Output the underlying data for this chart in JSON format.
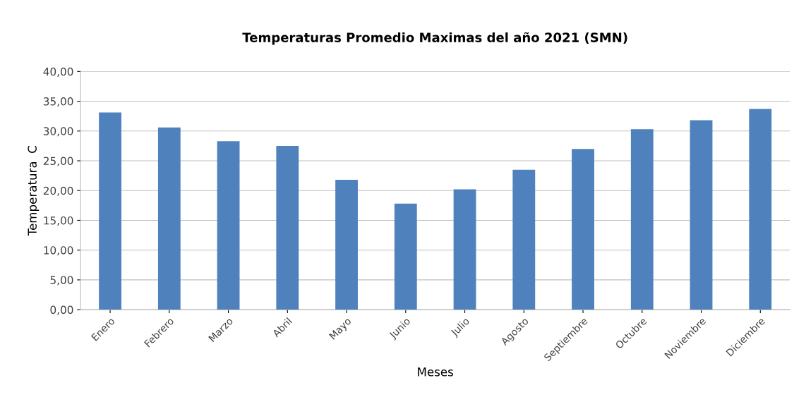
{
  "chart_data": {
    "type": "bar",
    "title": "Temperaturas Promedio Maximas del año 2021 (SMN)",
    "xlabel": "Meses",
    "ylabel": "Temperatura  C",
    "categories": [
      "Enero",
      "Febrero",
      "Marzo",
      "Abril",
      "Mayo",
      "Junio",
      "Julio",
      "Agosto",
      "Septiembre",
      "Octubre",
      "Noviembre",
      "Diciembre"
    ],
    "values": [
      33.1,
      30.6,
      28.3,
      27.5,
      21.8,
      17.8,
      20.2,
      23.5,
      27.0,
      30.3,
      31.8,
      33.7
    ],
    "color": "#4f81bd",
    "ylim": [
      0,
      40
    ],
    "yticks": [
      {
        "value": 0,
        "label": "0,00"
      },
      {
        "value": 5,
        "label": "5,00"
      },
      {
        "value": 10,
        "label": "10,00"
      },
      {
        "value": 15,
        "label": "15,00"
      },
      {
        "value": 20,
        "label": "20,00"
      },
      {
        "value": 25,
        "label": "25,00"
      },
      {
        "value": 30,
        "label": "30,00"
      },
      {
        "value": 35,
        "label": "35,00"
      },
      {
        "value": 40,
        "label": "40,00"
      }
    ],
    "grid": "y"
  }
}
